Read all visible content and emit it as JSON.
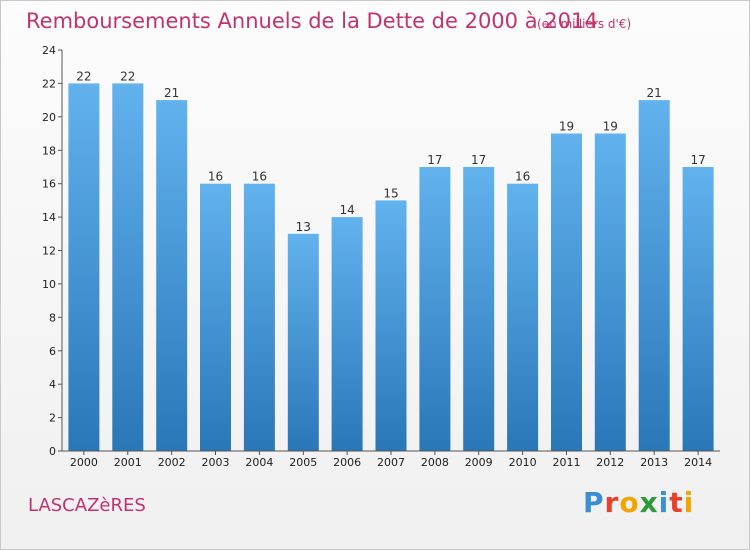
{
  "header": {
    "title": "Remboursements Annuels de la Dette de 2000 à 2014",
    "unit": "(en milliers d'€)"
  },
  "footer": {
    "commune": "LASCAZèRES",
    "brand_letters": [
      {
        "char": "P",
        "color": "#3a8fd1"
      },
      {
        "char": "r",
        "color": "#e7412c"
      },
      {
        "char": "o",
        "color": "#f4a300"
      },
      {
        "char": "x",
        "color": "#2c9a3a"
      },
      {
        "char": "i",
        "color": "#3a8fd1"
      },
      {
        "char": "t",
        "color": "#e7412c"
      },
      {
        "char": "i",
        "color": "#f4a300"
      }
    ]
  },
  "chart_data": {
    "type": "bar",
    "title": "Remboursements Annuels de la Dette de 2000 à 2014",
    "categories": [
      "2000",
      "2001",
      "2002",
      "2003",
      "2004",
      "2005",
      "2006",
      "2007",
      "2008",
      "2009",
      "2010",
      "2011",
      "2012",
      "2013",
      "2014"
    ],
    "values": [
      22,
      22,
      21,
      16,
      16,
      13,
      14,
      15,
      17,
      17,
      16,
      19,
      19,
      21,
      17
    ],
    "ylim": [
      0,
      24
    ],
    "yticks": [
      0,
      2,
      4,
      6,
      8,
      10,
      12,
      14,
      16,
      18,
      20,
      22,
      24
    ],
    "grid": false,
    "bar_color_top": "#62b2ee",
    "bar_color_bottom": "#2a77b8"
  }
}
